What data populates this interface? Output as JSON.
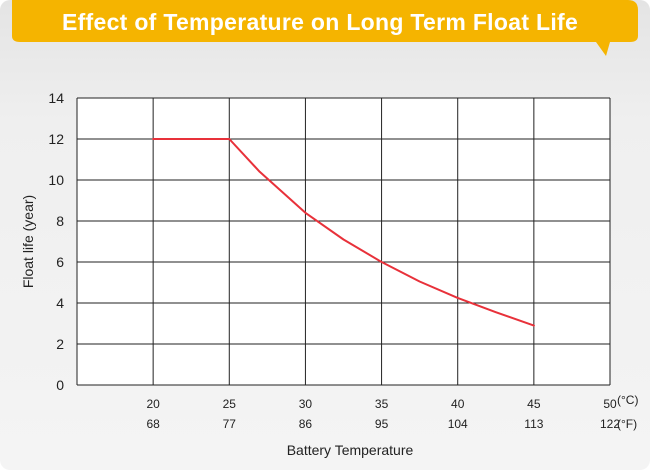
{
  "colors": {
    "banner": "#f5b400",
    "line": "#e8313a",
    "grid": "#222222",
    "plot_bg": "#ffffff"
  },
  "chart_data": {
    "type": "line",
    "title": "Effect of Temperature on Long Term Float Life",
    "xlabel": "Battery Temperature",
    "ylabel": "Float life (year)",
    "x_ticks_c": [
      "20",
      "25",
      "30",
      "35",
      "40",
      "45",
      "50"
    ],
    "x_ticks_f": [
      "68",
      "77",
      "86",
      "95",
      "104",
      "113",
      "122"
    ],
    "x_unit_c": "(°C)",
    "x_unit_f": "(°F)",
    "y_ticks": [
      "0",
      "2",
      "4",
      "6",
      "8",
      "10",
      "12",
      "14"
    ],
    "xlim": [
      15,
      50
    ],
    "ylim": [
      0,
      14
    ],
    "grid": true,
    "series": [
      {
        "x": [
          20,
          25,
          27,
          30,
          32.5,
          35,
          37.5,
          40,
          42.5,
          45
        ],
        "y": [
          12,
          12,
          10.4,
          8.4,
          7.1,
          6.0,
          5.05,
          4.25,
          3.55,
          2.9
        ]
      }
    ]
  }
}
